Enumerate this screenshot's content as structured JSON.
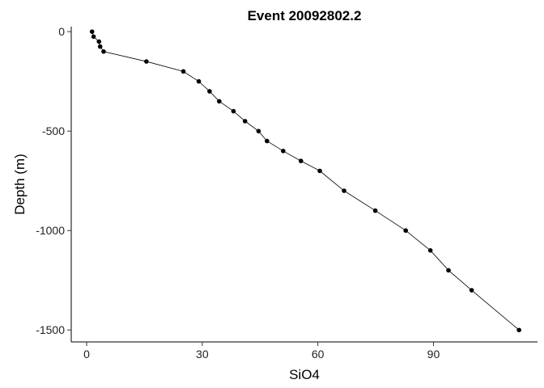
{
  "chart_data": {
    "type": "line",
    "title": "Event 20092802.2",
    "xlabel": "SiO4",
    "ylabel": "Depth (m)",
    "xlim": [
      -4,
      117
    ],
    "ylim": [
      -1560,
      25
    ],
    "xticks": [
      0,
      30,
      60,
      90
    ],
    "xtick_labels": [
      "0",
      "30",
      "60",
      "90"
    ],
    "yticks": [
      0,
      -500,
      -1000,
      -1500
    ],
    "ytick_labels": [
      "0",
      "-500",
      "-1000",
      "-1500"
    ],
    "grid": false,
    "legend": "none",
    "series": [
      {
        "x": [
          1.4,
          1.8,
          3.2,
          3.5,
          4.4,
          15.5,
          25.1,
          29.1,
          31.9,
          34.4,
          38.1,
          41.1,
          44.6,
          46.8,
          51.0,
          55.6,
          60.5,
          66.8,
          74.9,
          82.8,
          89.2,
          93.9,
          99.9,
          112.2
        ],
        "y": [
          0,
          -25,
          -50,
          -75,
          -100,
          -150,
          -200,
          -250,
          -300,
          -350,
          -400,
          -450,
          -500,
          -550,
          -600,
          -650,
          -700,
          -800,
          -900,
          -1000,
          -1100,
          -1200,
          -1300,
          -1500
        ]
      }
    ]
  }
}
